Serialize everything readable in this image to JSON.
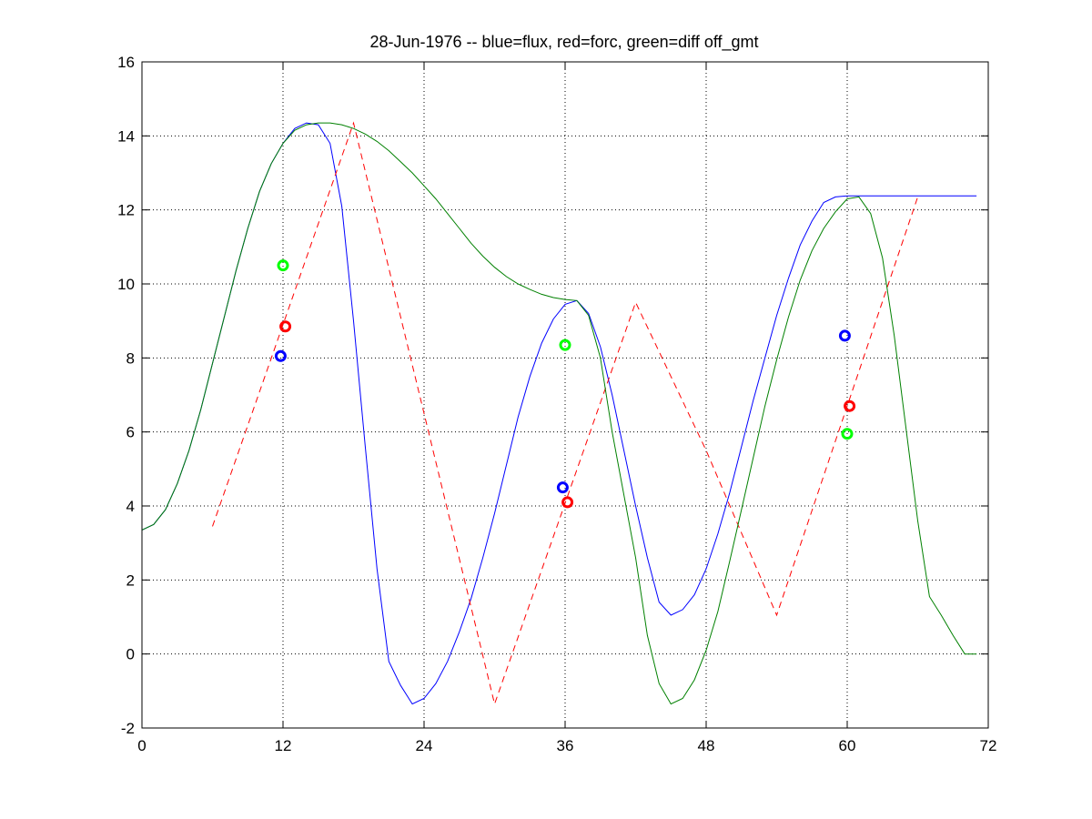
{
  "chart_data": {
    "type": "line",
    "title": "28-Jun-1976 -- blue=flux, red=forc, green=diff off_gmt",
    "xlabel": "",
    "ylabel": "",
    "xlim": [
      0,
      72
    ],
    "ylim": [
      -2,
      16
    ],
    "xticks": [
      0,
      12,
      24,
      36,
      48,
      60,
      72
    ],
    "yticks": [
      -2,
      0,
      2,
      4,
      6,
      8,
      10,
      12,
      14,
      16
    ],
    "grid": true,
    "series": [
      {
        "color": "#0000ff",
        "style": "solid",
        "x": [
          0,
          1,
          2,
          3,
          4,
          5,
          6,
          7,
          8,
          9,
          10,
          11,
          12,
          13,
          14,
          15,
          16,
          17,
          18,
          19,
          20,
          21,
          22,
          23,
          24,
          25,
          26,
          27,
          28,
          29,
          30,
          31,
          32,
          33,
          34,
          35,
          36,
          37,
          38,
          39,
          40,
          41,
          42,
          43,
          44,
          45,
          46,
          47,
          48,
          49,
          50,
          51,
          52,
          53,
          54,
          55,
          56,
          57,
          58,
          59,
          60,
          61,
          62,
          63,
          64,
          65,
          66,
          67,
          68,
          69,
          70,
          71
        ],
        "y": [
          3.35,
          3.5,
          3.9,
          4.6,
          5.5,
          6.6,
          7.85,
          9.1,
          10.35,
          11.5,
          12.5,
          13.25,
          13.8,
          14.2,
          14.35,
          14.3,
          13.8,
          12.1,
          9.0,
          5.6,
          2.3,
          -0.2,
          -0.85,
          -1.35,
          -1.2,
          -0.8,
          -0.2,
          0.6,
          1.5,
          2.6,
          3.8,
          5.1,
          6.4,
          7.5,
          8.4,
          9.05,
          9.45,
          9.55,
          9.2,
          8.3,
          7.0,
          5.5,
          4.0,
          2.6,
          1.4,
          1.05,
          1.2,
          1.6,
          2.3,
          3.25,
          4.35,
          5.6,
          6.85,
          8.0,
          9.15,
          10.15,
          11.05,
          11.7,
          12.2,
          12.35,
          12.38,
          12.38,
          12.38,
          12.38,
          12.38,
          12.38,
          12.38,
          12.38,
          12.38,
          12.38,
          12.38,
          12.38
        ]
      },
      {
        "color": "#ff0000",
        "style": "dashed",
        "x": [
          6,
          18,
          30,
          42,
          48,
          54,
          66
        ],
        "y": [
          3.45,
          14.35,
          -1.35,
          9.5,
          5.5,
          1.05,
          12.35
        ]
      },
      {
        "color": "#008000",
        "style": "solid",
        "x": [
          0,
          1,
          2,
          3,
          4,
          5,
          6,
          7,
          8,
          9,
          10,
          11,
          12,
          13,
          14,
          15,
          16,
          17,
          18,
          19,
          20,
          21,
          22,
          23,
          24,
          25,
          26,
          27,
          28,
          29,
          30,
          31,
          32,
          33,
          34,
          35,
          36,
          37,
          38,
          39,
          40,
          41,
          42,
          43,
          44,
          45,
          46,
          47,
          48,
          49,
          50,
          51,
          52,
          53,
          54,
          55,
          56,
          57,
          58,
          59,
          60,
          61,
          62,
          63,
          64,
          65,
          66,
          67,
          68,
          69,
          70,
          71
        ],
        "y": [
          3.35,
          3.5,
          3.9,
          4.6,
          5.5,
          6.6,
          7.85,
          9.1,
          10.35,
          11.5,
          12.5,
          13.25,
          13.8,
          14.15,
          14.3,
          14.35,
          14.35,
          14.3,
          14.2,
          14.05,
          13.85,
          13.6,
          13.3,
          13.0,
          12.65,
          12.3,
          11.9,
          11.5,
          11.1,
          10.75,
          10.45,
          10.2,
          10.0,
          9.85,
          9.72,
          9.63,
          9.58,
          9.55,
          9.15,
          8.0,
          6.0,
          4.3,
          2.6,
          0.5,
          -0.8,
          -1.35,
          -1.2,
          -0.7,
          0.1,
          1.15,
          2.5,
          3.9,
          5.3,
          6.7,
          7.95,
          9.1,
          10.1,
          10.9,
          11.5,
          11.95,
          12.3,
          12.35,
          11.9,
          10.7,
          8.6,
          6.1,
          3.6,
          1.55,
          1.05,
          0.5,
          0.0,
          0.0
        ]
      }
    ],
    "markers": [
      {
        "color": "#0000ff",
        "x": 11.8,
        "y": 8.05
      },
      {
        "color": "#ff0000",
        "x": 12.2,
        "y": 8.85
      },
      {
        "color": "#00ff00",
        "x": 12.0,
        "y": 10.5
      },
      {
        "color": "#0000ff",
        "x": 35.8,
        "y": 4.5
      },
      {
        "color": "#ff0000",
        "x": 36.2,
        "y": 4.1
      },
      {
        "color": "#00ff00",
        "x": 36.0,
        "y": 8.35
      },
      {
        "color": "#0000ff",
        "x": 59.8,
        "y": 8.6
      },
      {
        "color": "#ff0000",
        "x": 60.2,
        "y": 6.7
      },
      {
        "color": "#00ff00",
        "x": 60.0,
        "y": 5.95
      }
    ]
  }
}
